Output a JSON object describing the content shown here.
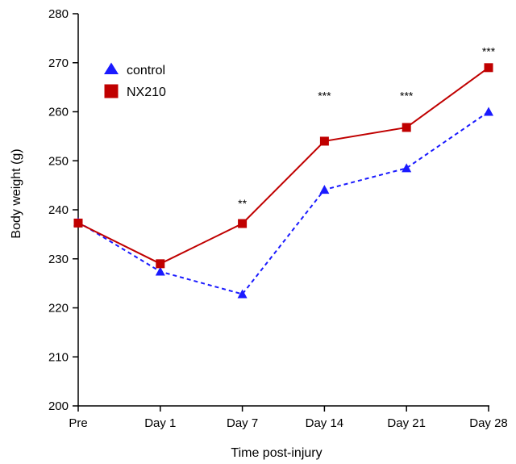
{
  "chart_data": {
    "type": "line",
    "title": "",
    "xlabel": "Time post-injury",
    "ylabel": "Body weight (g)",
    "categories": [
      "Pre",
      "Day 1",
      "Day 7",
      "Day 14",
      "Day 21",
      "Day 28"
    ],
    "ylim": [
      200,
      280
    ],
    "yticks": [
      200,
      210,
      220,
      230,
      240,
      250,
      260,
      270,
      280
    ],
    "grid": false,
    "legend_position": "top-left",
    "series": [
      {
        "name": "control",
        "values": [
          237.5,
          227.4,
          222.8,
          244.1,
          248.5,
          260.0
        ],
        "color": "#1a1aff",
        "marker": "triangle",
        "line_style": "dashed"
      },
      {
        "name": "NX210",
        "values": [
          237.3,
          229.0,
          237.2,
          254.0,
          256.8,
          269.0
        ],
        "color": "#c00000",
        "marker": "square",
        "line_style": "solid"
      }
    ],
    "annotations": [
      {
        "category": "Day 7",
        "text": "**",
        "y": 240.5
      },
      {
        "category": "Day 14",
        "text": "***",
        "y": 262.5
      },
      {
        "category": "Day 21",
        "text": "***",
        "y": 262.5
      },
      {
        "category": "Day 28",
        "text": "***",
        "y": 271.5
      }
    ]
  }
}
